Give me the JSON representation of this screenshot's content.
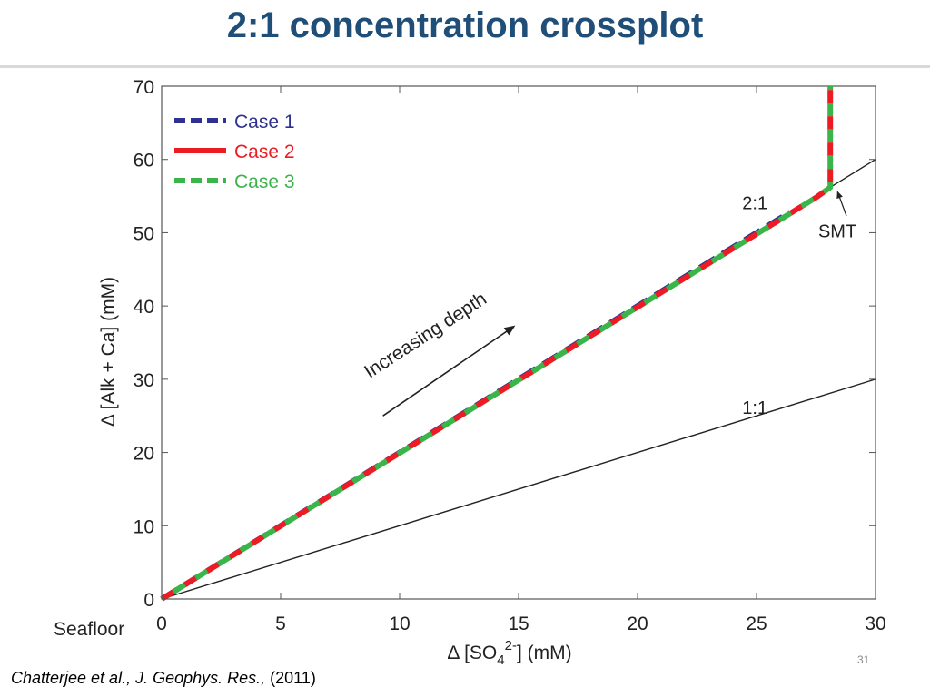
{
  "slide": {
    "title": "2:1 concentration crossplot",
    "citation_authors": "Chatterjee et al., J. Geophys. Res.,",
    "citation_year": " (2011)",
    "slide_number": "31"
  },
  "chart_data": {
    "type": "line",
    "title": "",
    "xlabel_prefix": "Δ [SO",
    "xlabel_sub": "4",
    "xlabel_sup": "2-",
    "xlabel_suffix": "] (mM)",
    "ylabel": "Δ [Alk + Ca] (mM)",
    "xlim": [
      0,
      30
    ],
    "ylim": [
      0,
      70
    ],
    "xticks": [
      0,
      5,
      10,
      15,
      20,
      25,
      30
    ],
    "yticks": [
      0,
      10,
      20,
      30,
      40,
      50,
      60,
      70
    ],
    "grid": false,
    "legend_position": "top-left",
    "series": [
      {
        "name": "Case 1",
        "color": "#2e3192",
        "style": "dash-long",
        "x": [
          0,
          26.4
        ],
        "y": [
          0,
          52.8
        ]
      },
      {
        "name": "Case 2",
        "color": "#ed1c24",
        "style": "dash",
        "x": [
          0,
          27.5,
          28.1,
          28.1
        ],
        "y": [
          0,
          54.8,
          56.2,
          70
        ]
      },
      {
        "name": "Case 3",
        "color": "#39b54a",
        "style": "dash",
        "x": [
          0,
          27.5,
          28.1,
          28.1
        ],
        "y": [
          0,
          54.8,
          56.2,
          70
        ]
      }
    ],
    "reference_lines": [
      {
        "label": "2:1",
        "x": [
          0,
          30
        ],
        "y": [
          0,
          60
        ],
        "label_x": 24.4,
        "label_y": 53.2
      },
      {
        "label": "1:1",
        "x": [
          0,
          30
        ],
        "y": [
          0,
          30
        ],
        "label_x": 24.4,
        "label_y": 25.3
      }
    ],
    "annotations": [
      {
        "text": "Increasing depth",
        "arrow_from": [
          9.3,
          25
        ],
        "arrow_to": [
          14.8,
          37.2
        ]
      },
      {
        "text": "SMT",
        "point": [
          28.1,
          56.2
        ],
        "text_at": [
          28.4,
          49.4
        ]
      },
      {
        "text": "Seafloor",
        "text_at": [
          0,
          0
        ]
      }
    ]
  }
}
